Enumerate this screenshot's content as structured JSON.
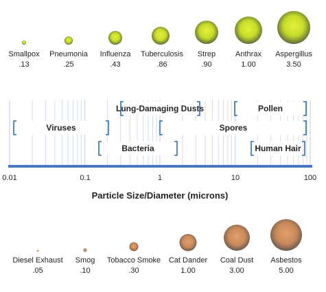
{
  "pathogens": [
    {
      "name": "Smallpox",
      "size": ".13"
    },
    {
      "name": "Pneumonia",
      "size": ".25"
    },
    {
      "name": "Influenza",
      "size": ".43"
    },
    {
      "name": "Tuberculosis",
      "size": ".86"
    },
    {
      "name": "Strep",
      "size": ".90"
    },
    {
      "name": "Anthrax",
      "size": "1.00"
    },
    {
      "name": "Aspergillus",
      "size": "3.50"
    }
  ],
  "particulates": [
    {
      "name": "Diesel Exhaust",
      "size": ".05"
    },
    {
      "name": "Smog",
      "size": ".10"
    },
    {
      "name": "Tobacco Smoke",
      "size": ".30"
    },
    {
      "name": "Cat Dander",
      "size": "1.00"
    },
    {
      "name": "Coal Dust",
      "size": "3.00"
    },
    {
      "name": "Asbestos",
      "size": "5.00"
    }
  ],
  "ranges": [
    {
      "label": "Viruses"
    },
    {
      "label": "Lung-Damaging Dusts"
    },
    {
      "label": "Bacteria"
    },
    {
      "label": "Spores"
    },
    {
      "label": "Pollen"
    },
    {
      "label": "Human Hair"
    }
  ],
  "axis": {
    "ticks": [
      "0.01",
      "0.1",
      "1",
      "10",
      "100"
    ],
    "title": "Particle Size/Diameter (microns)",
    "scale": "log"
  },
  "colors": {
    "pathogen_fill": "#c6dc2a",
    "particulate_fill": "#c8895a",
    "bracket": "#2b6db3",
    "axis_line": "#4a78c2",
    "gridline": "#c9d6ea"
  }
}
